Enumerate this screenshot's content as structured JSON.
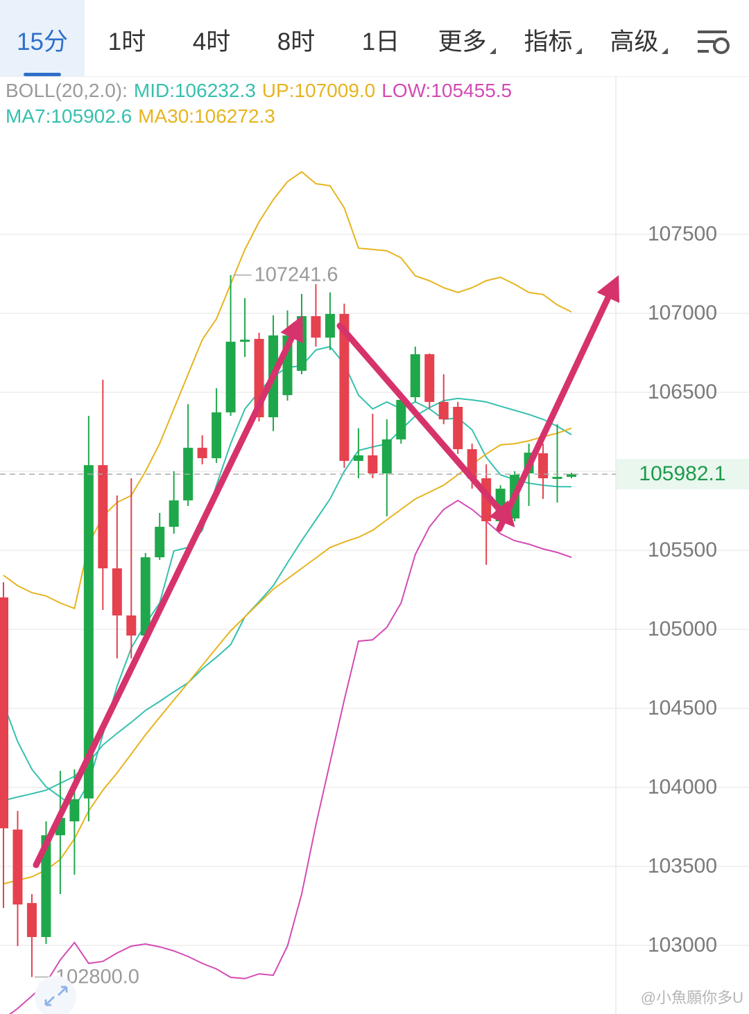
{
  "tabs": [
    {
      "label": "15分"
    },
    {
      "label": "1时"
    },
    {
      "label": "4时"
    },
    {
      "label": "8时"
    },
    {
      "label": "1日"
    },
    {
      "label": "更多",
      "dropdown": true
    },
    {
      "label": "指标",
      "dropdown": true
    },
    {
      "label": "高级",
      "dropdown": true
    }
  ],
  "active_tab": 0,
  "watermark": "@小魚願你多U",
  "chart_data": {
    "type": "candlestick",
    "up_color": "#1fa84b",
    "down_color": "#e5414e",
    "ylim": [
      102566,
      108500
    ],
    "yticks": [
      103000,
      103500,
      104000,
      104500,
      105000,
      105500,
      106000,
      106500,
      107000,
      107500
    ],
    "grid": true,
    "last_price": 105982.1,
    "annotations": [
      {
        "value": 107241.6
      },
      {
        "value": 102800,
        "label": "102800.0"
      }
    ],
    "ohlc": {
      "open": [
        105202,
        103733,
        103268,
        103053,
        103697,
        103785,
        103930,
        106039,
        105386,
        105088,
        104961,
        105456,
        105649,
        105816,
        106149,
        106083,
        106373,
        106820,
        106838,
        106342,
        106482,
        106636,
        106982,
        106846,
        106996,
        106066,
        106101,
        105987,
        106202,
        106469,
        106741,
        106439,
        106408,
        106140,
        105956,
        105684,
        105702,
        105987,
        106114,
        105952,
        105965
      ],
      "high": [
        105298,
        103851,
        103325,
        103785,
        104105,
        104114,
        106351,
        106579,
        105847,
        105956,
        105483,
        105737,
        106000,
        106425,
        106228,
        106526,
        107241.6,
        107096,
        106877,
        106987,
        107018,
        107123,
        107184,
        107132,
        107061,
        106272,
        106364,
        106329,
        106482,
        106789,
        106746,
        106614,
        106439,
        106175,
        106044,
        105912,
        106000,
        106175,
        106175,
        106298,
        105991
      ],
      "low": [
        103237,
        102996,
        102800,
        103009,
        103325,
        103447,
        103785,
        105123,
        104816,
        104816,
        104948,
        105439,
        105605,
        105781,
        106044,
        106053,
        106351,
        106724,
        106316,
        106254,
        106447,
        106614,
        106789,
        106767,
        106022,
        105956,
        105956,
        105715,
        106175,
        106439,
        106395,
        106298,
        106110,
        105890,
        105408,
        105627,
        105684,
        105781,
        105825,
        105803,
        105956
      ],
      "close": [
        103741,
        103259,
        103053,
        103697,
        103807,
        103925,
        106039,
        105386,
        105088,
        104961,
        105456,
        105649,
        105816,
        106149,
        106083,
        106373,
        106820,
        106833,
        106342,
        106860,
        106860,
        106982,
        106846,
        106996,
        106066,
        106101,
        105987,
        106202,
        106452,
        106741,
        106439,
        106329,
        106140,
        105956,
        105684,
        105890,
        105978,
        106118,
        105956,
        105965,
        105982.1
      ]
    },
    "indicators": [
      {
        "label": "BOLL(20,2.0):",
        "lines": [
          {
            "name": "MID:",
            "color": "#35c0ae",
            "value_label": "106232.3",
            "values": [
              103917,
              103939,
              103960,
              103982,
              104026,
              104070,
              104158,
              104268,
              104342,
              104412,
              104487,
              104544,
              104605,
              104662,
              104750,
              104824,
              104903,
              105079,
              105175,
              105276,
              105421,
              105561,
              105693,
              105825,
              106000,
              106132,
              106154,
              106175,
              106263,
              106351,
              106403,
              106447,
              106461,
              106452,
              106439,
              106412,
              106386,
              106360,
              106329,
              106285,
              106232.3
            ]
          },
          {
            "name": "UP:",
            "color": "#e6b41e",
            "value_label": "107009.0",
            "values": [
              105342,
              105276,
              105232,
              105211,
              105167,
              105132,
              105539,
              105715,
              105803,
              105847,
              106000,
              106175,
              106395,
              106614,
              106833,
              106965,
              107184,
              107404,
              107579,
              107719,
              107833,
              107895,
              107820,
              107807,
              107667,
              107412,
              107404,
              107395,
              107351,
              107237,
              107206,
              107162,
              107132,
              107162,
              107206,
              107228,
              107184,
              107132,
              107119,
              107053,
              107009
            ]
          },
          {
            "name": "LOW:",
            "color": "#d34bb3",
            "value_label": "105455.5",
            "values": [
              102535,
              102601,
              102680,
              102763,
              102908,
              103018,
              102886,
              102899,
              102952,
              102996,
              103009,
              102991,
              102965,
              102930,
              102886,
              102851,
              102798,
              102790,
              102820,
              102811,
              102996,
              103325,
              103763,
              104158,
              104553,
              104925,
              104934,
              105013,
              105167,
              105474,
              105649,
              105759,
              105816,
              105759,
              105684,
              105605,
              105561,
              105539,
              105509,
              105487,
              105455.5
            ]
          }
        ]
      },
      {
        "lines": [
          {
            "name": "MA7:",
            "color": "#35c0ae",
            "value_label": "105902.6",
            "values": [
              104531,
              104289,
              104114,
              104004,
              103939,
              103873,
              104026,
              104333,
              104640,
              104882,
              105035,
              105167,
              105496,
              105518,
              105627,
              105912,
              106175,
              106395,
              106504,
              106601,
              106658,
              106667,
              106768,
              106789,
              106680,
              106482,
              106395,
              106439,
              106395,
              106439,
              106395,
              106329,
              106338,
              106263,
              106088,
              105978,
              105947,
              105925,
              105912,
              105903,
              105902.6
            ]
          },
          {
            "name": "MA30:",
            "color": "#e6b41e",
            "value_label": "106272.3",
            "values": [
              103390,
              103412,
              103434,
              103478,
              103544,
              103675,
              103851,
              103982,
              104092,
              104211,
              104333,
              104443,
              104553,
              104662,
              104772,
              104882,
              104991,
              105079,
              105167,
              105254,
              105320,
              105386,
              105452,
              105518,
              105553,
              105583,
              105627,
              105693,
              105759,
              105825,
              105868,
              105912,
              105978,
              106044,
              106110,
              106167,
              106175,
              106193,
              106219,
              106241,
              106272.3
            ]
          }
        ]
      }
    ]
  }
}
